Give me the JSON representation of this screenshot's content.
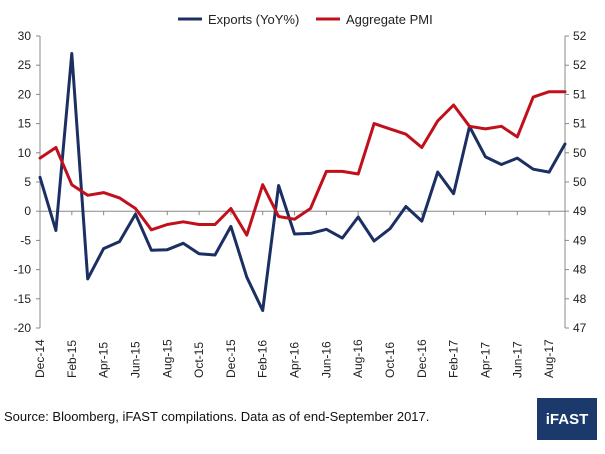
{
  "chart_data": {
    "type": "line",
    "categories": [
      "Dec-14",
      "Jan-15",
      "Feb-15",
      "Mar-15",
      "Apr-15",
      "May-15",
      "Jun-15",
      "Jul-15",
      "Aug-15",
      "Sep-15",
      "Oct-15",
      "Nov-15",
      "Dec-15",
      "Jan-16",
      "Feb-16",
      "Mar-16",
      "Apr-16",
      "May-16",
      "Jun-16",
      "Jul-16",
      "Aug-16",
      "Sep-16",
      "Oct-16",
      "Nov-16",
      "Dec-16",
      "Jan-17",
      "Feb-17",
      "Mar-17",
      "Apr-17",
      "May-17",
      "Jun-17",
      "Jul-17",
      "Aug-17",
      "Sep-17"
    ],
    "x_tick_labels": [
      "Dec-14",
      "Feb-15",
      "Apr-15",
      "Jun-15",
      "Aug-15",
      "Oct-15",
      "Dec-15",
      "Feb-16",
      "Apr-16",
      "Jun-16",
      "Aug-16",
      "Oct-16",
      "Dec-16",
      "Feb-17",
      "Apr-17",
      "Jun-17",
      "Aug-17"
    ],
    "series": [
      {
        "name": "Exports (YoY%)",
        "axis": "left",
        "color": "#1b2f63",
        "values": [
          5.8,
          -3.3,
          27.0,
          -11.6,
          -6.4,
          -5.2,
          -0.5,
          -6.7,
          -6.6,
          -5.5,
          -7.3,
          -7.5,
          -2.6,
          -11.3,
          -17.0,
          4.4,
          -3.9,
          -3.8,
          -3.1,
          -4.6,
          -1.0,
          -5.1,
          -3.0,
          0.8,
          -1.7,
          6.7,
          3.0,
          14.5,
          9.3,
          8.0,
          9.1,
          7.2,
          6.7,
          11.5
        ]
      },
      {
        "name": "Aggregate PMI",
        "axis": "right",
        "color": "#c0101c",
        "values": [
          50.2,
          50.4,
          49.7,
          49.5,
          49.55,
          49.45,
          49.25,
          48.85,
          48.95,
          49.0,
          48.95,
          48.95,
          49.25,
          48.75,
          49.7,
          49.1,
          49.05,
          49.25,
          49.95,
          49.95,
          49.9,
          50.85,
          50.75,
          50.65,
          50.4,
          50.9,
          51.2,
          50.8,
          50.75,
          50.8,
          50.6,
          51.35,
          51.45,
          51.45
        ]
      }
    ],
    "left_axis": {
      "ticks": [
        "30",
        "25",
        "20",
        "15",
        "10",
        "5",
        "0",
        "-5",
        "-10",
        "-15",
        "-20"
      ],
      "ylim": [
        -20,
        30
      ]
    },
    "right_axis": {
      "ticks": [
        "52",
        "52",
        "51",
        "51",
        "50",
        "50",
        "49",
        "49",
        "48",
        "48",
        "47"
      ],
      "ylim": [
        47.0,
        52.5
      ]
    },
    "legend_position": "top",
    "grid": false
  },
  "footer": {
    "source": "Source: Bloomberg, iFAST compilations. Data as of end-September 2017.",
    "logo": "iFAST"
  }
}
